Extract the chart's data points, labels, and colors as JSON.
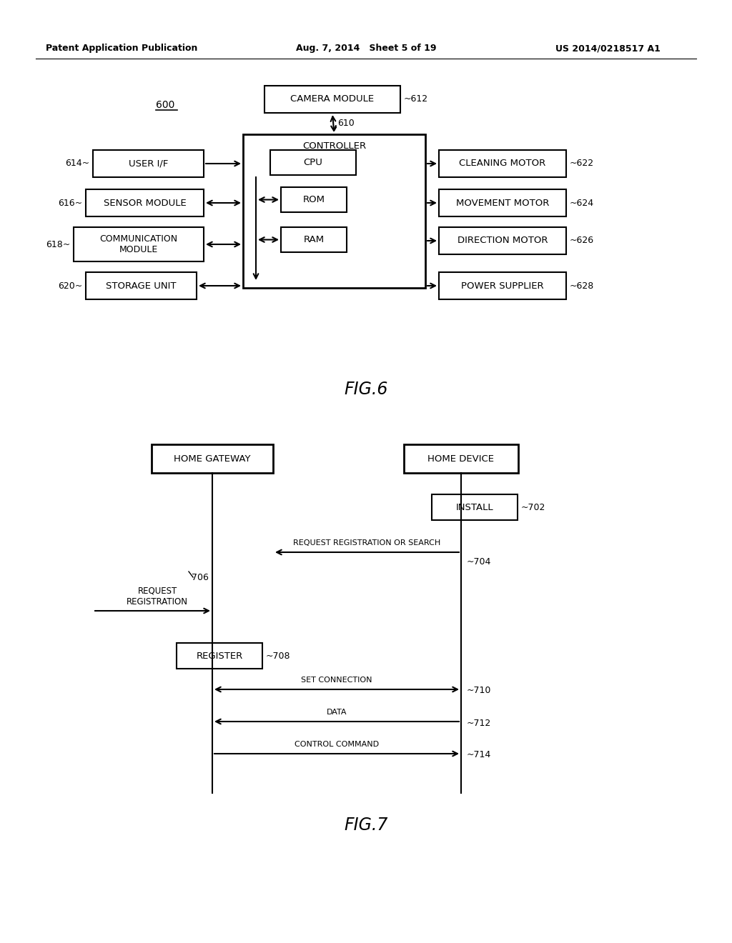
{
  "fig_width": 10.24,
  "fig_height": 13.2,
  "bg_color": "#ffffff",
  "header_left": "Patent Application Publication",
  "header_center": "Aug. 7, 2014   Sheet 5 of 19",
  "header_right": "US 2014/0218517 A1",
  "fig6_title": "FIG.6",
  "fig7_title": "FIG.7",
  "label_600": "600"
}
